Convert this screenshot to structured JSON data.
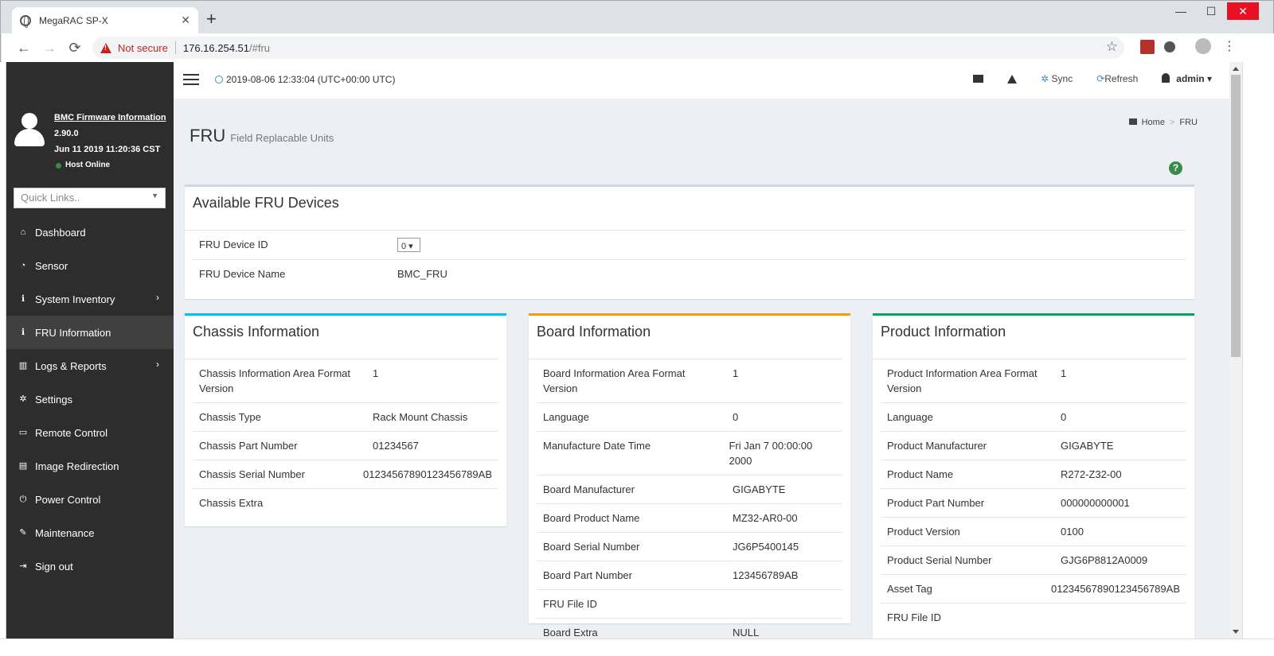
{
  "browser": {
    "tab_title": "MegaRAC SP-X",
    "not_secure": "Not secure",
    "url_host": "176.16.254.51",
    "url_path": "/#fru"
  },
  "sidebar": {
    "fw_title": "BMC Firmware Information",
    "fw_version": "2.90.0",
    "fw_date": "Jun 11 2019 11:20:36 CST",
    "host_status": "Host Online",
    "quick_links": "Quick Links..",
    "items": [
      {
        "label": "Dashboard",
        "icon": "home-icon"
      },
      {
        "label": "Sensor",
        "icon": "gauge-icon"
      },
      {
        "label": "System Inventory",
        "icon": "info-icon",
        "arrow": true
      },
      {
        "label": "FRU Information",
        "icon": "info-icon",
        "active": true
      },
      {
        "label": "Logs & Reports",
        "icon": "bar-chart-icon",
        "arrow": true
      },
      {
        "label": "Settings",
        "icon": "gear-icon"
      },
      {
        "label": "Remote Control",
        "icon": "monitor-icon"
      },
      {
        "label": "Image Redirection",
        "icon": "hdd-icon"
      },
      {
        "label": "Power Control",
        "icon": "power-icon"
      },
      {
        "label": "Maintenance",
        "icon": "wrench-icon"
      },
      {
        "label": "Sign out",
        "icon": "sign-out-icon"
      }
    ]
  },
  "topbar": {
    "datetime": "2019-08-06 12:33:04 (UTC+00:00 UTC)",
    "sync": "Sync",
    "refresh": "Refresh",
    "user": "admin"
  },
  "page": {
    "title": "FRU",
    "subtitle": "Field Replacable Units",
    "breadcrumb_home": "Home",
    "breadcrumb_current": "FRU",
    "help": "?"
  },
  "fru": {
    "title": "Available FRU Devices",
    "id_label": "FRU Device ID",
    "id_value": "0",
    "name_label": "FRU Device Name",
    "name_value": "BMC_FRU"
  },
  "chassis": {
    "title": "Chassis Information",
    "rows": [
      {
        "k": "Chassis Information Area Format Version",
        "v": "1"
      },
      {
        "k": "Chassis Type",
        "v": "Rack Mount Chassis"
      },
      {
        "k": "Chassis Part Number",
        "v": "01234567"
      },
      {
        "k": "Chassis Serial Number",
        "v": "01234567890123456789AB"
      },
      {
        "k": "Chassis Extra",
        "v": ""
      }
    ]
  },
  "board": {
    "title": "Board Information",
    "rows": [
      {
        "k": "Board Information Area Format Version",
        "v": "1"
      },
      {
        "k": "Language",
        "v": "0"
      },
      {
        "k": "Manufacture Date Time",
        "v": "Fri Jan 7 00:00:00 2000"
      },
      {
        "k": "Board Manufacturer",
        "v": "GIGABYTE"
      },
      {
        "k": "Board Product Name",
        "v": "MZ32-AR0-00"
      },
      {
        "k": "Board Serial Number",
        "v": "JG6P5400145"
      },
      {
        "k": "Board Part Number",
        "v": "123456789AB"
      },
      {
        "k": "FRU File ID",
        "v": ""
      },
      {
        "k": "Board Extra",
        "v": "NULL"
      }
    ]
  },
  "product": {
    "title": "Product Information",
    "rows": [
      {
        "k": "Product Information Area Format Version",
        "v": "1"
      },
      {
        "k": "Language",
        "v": "0"
      },
      {
        "k": "Product Manufacturer",
        "v": "GIGABYTE"
      },
      {
        "k": "Product Name",
        "v": "R272-Z32-00"
      },
      {
        "k": "Product Part Number",
        "v": "000000000001"
      },
      {
        "k": "Product Version",
        "v": "0100"
      },
      {
        "k": "Product Serial Number",
        "v": "GJG6P8812A0009"
      },
      {
        "k": "Asset Tag",
        "v": "01234567890123456789AB"
      },
      {
        "k": "FRU File ID",
        "v": ""
      }
    ]
  }
}
